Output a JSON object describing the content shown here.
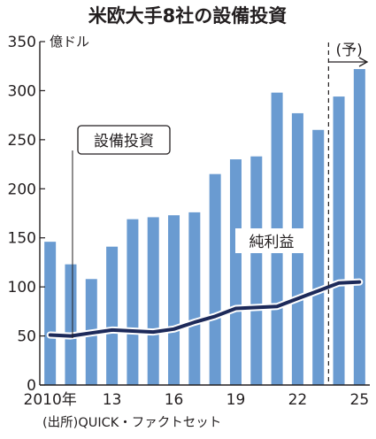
{
  "chart_data": {
    "type": "bar",
    "title": "米欧大手8社の設備投資",
    "unit": "億ドル",
    "ylim": [
      0,
      350
    ],
    "yticks": [
      0,
      50,
      100,
      150,
      200,
      250,
      300,
      350
    ],
    "xtick_labels": [
      {
        "year": 2010,
        "label": "2010年"
      },
      {
        "year": 2013,
        "label": "13"
      },
      {
        "year": 2016,
        "label": "16"
      },
      {
        "year": 2019,
        "label": "19"
      },
      {
        "year": 2022,
        "label": "22"
      },
      {
        "year": 2025,
        "label": "25"
      }
    ],
    "x": [
      2010,
      2011,
      2012,
      2013,
      2014,
      2015,
      2016,
      2017,
      2018,
      2019,
      2020,
      2021,
      2022,
      2023,
      2024,
      2025
    ],
    "series": [
      {
        "name": "設備投資",
        "type": "bar",
        "color": "#6a9bd1",
        "values": [
          146,
          123,
          108,
          141,
          169,
          171,
          173,
          176,
          215,
          230,
          233,
          298,
          277,
          260,
          294,
          322
        ]
      },
      {
        "name": "純利益",
        "type": "line",
        "color": "#1d2a5a",
        "values": [
          51,
          50,
          53,
          56,
          55,
          54,
          57,
          64,
          70,
          78,
          79,
          80,
          88,
          96,
          104,
          105
        ]
      }
    ],
    "forecast_label": "(予)",
    "forecast_from": 2024,
    "source": "(出所)QUICK・ファクトセット",
    "grid": false
  }
}
